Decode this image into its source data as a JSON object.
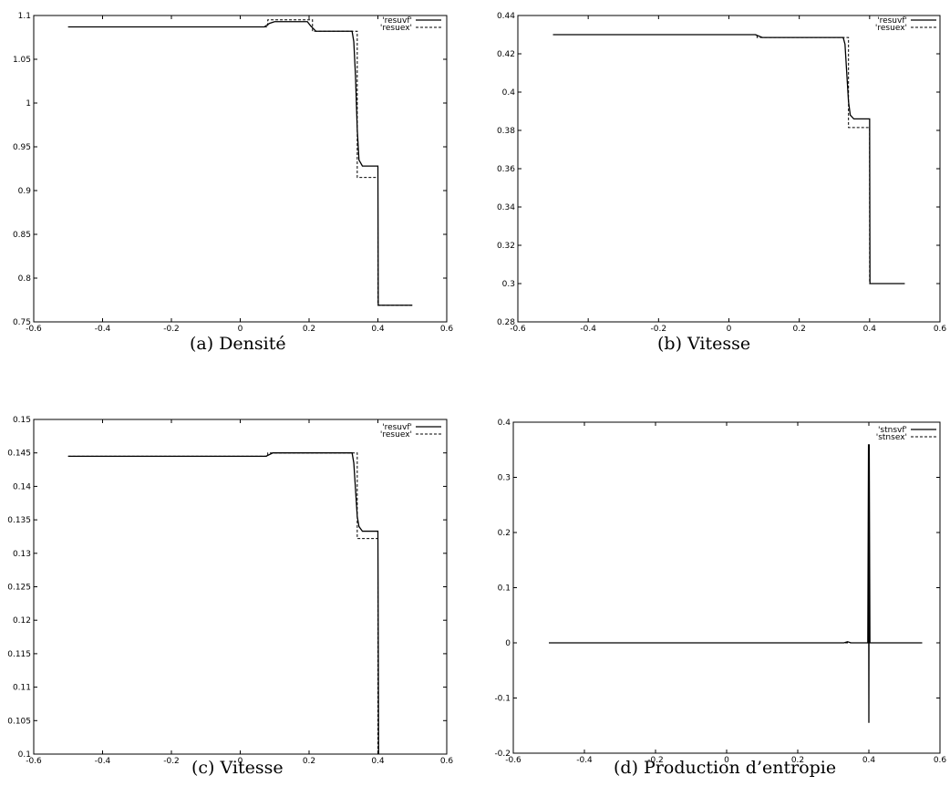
{
  "chart_data": [
    {
      "type": "line",
      "caption": "(a) Densité",
      "xlim": [
        -0.6,
        0.6
      ],
      "ylim": [
        0.75,
        1.1
      ],
      "xticks": [
        "-0.6",
        "-0.4",
        "-0.2",
        "0",
        "0.2",
        "0.4",
        "0.6"
      ],
      "yticks": [
        "0.75",
        "0.8",
        "0.85",
        "0.9",
        "0.95",
        "1",
        "1.05",
        "1.1"
      ],
      "legend_position": "top-right",
      "series": [
        {
          "name": "'resuvf'",
          "style": "solid",
          "x": [
            -0.5,
            0.07,
            0.085,
            0.1,
            0.195,
            0.205,
            0.22,
            0.325,
            0.33,
            0.335,
            0.34,
            0.345,
            0.355,
            0.4,
            0.401,
            0.5
          ],
          "y": [
            1.087,
            1.087,
            1.091,
            1.093,
            1.093,
            1.088,
            1.082,
            1.082,
            1.07,
            1.03,
            0.97,
            0.935,
            0.928,
            0.928,
            0.769,
            0.769
          ]
        },
        {
          "name": "'resuex'",
          "style": "dashed",
          "x": [
            -0.5,
            0.08,
            0.08,
            0.21,
            0.21,
            0.34,
            0.34,
            0.4,
            0.4,
            0.5
          ],
          "y": [
            1.087,
            1.087,
            1.095,
            1.095,
            1.082,
            1.082,
            0.915,
            0.915,
            0.769,
            0.769
          ]
        }
      ]
    },
    {
      "type": "line",
      "caption": "(b) Vitesse",
      "xlim": [
        -0.6,
        0.6
      ],
      "ylim": [
        0.28,
        0.44
      ],
      "xticks": [
        "-0.6",
        "-0.4",
        "-0.2",
        "0",
        "0.2",
        "0.4",
        "0.6"
      ],
      "yticks": [
        "0.28",
        "0.3",
        "0.32",
        "0.34",
        "0.36",
        "0.38",
        "0.4",
        "0.42",
        "0.44"
      ],
      "legend_position": "top-right",
      "series": [
        {
          "name": "'resuvf'",
          "style": "solid",
          "x": [
            -0.5,
            0.075,
            0.095,
            0.325,
            0.33,
            0.335,
            0.34,
            0.345,
            0.355,
            0.4,
            0.401,
            0.5
          ],
          "y": [
            0.43,
            0.43,
            0.4285,
            0.4285,
            0.425,
            0.41,
            0.395,
            0.388,
            0.386,
            0.386,
            0.3,
            0.3
          ]
        },
        {
          "name": "'resuex'",
          "style": "dashed",
          "x": [
            -0.5,
            0.08,
            0.08,
            0.34,
            0.34,
            0.4,
            0.4,
            0.5
          ],
          "y": [
            0.43,
            0.43,
            0.4285,
            0.4285,
            0.3815,
            0.3815,
            0.3,
            0.3
          ]
        }
      ]
    },
    {
      "type": "line",
      "caption": "(c) Vitesse",
      "xlim": [
        -0.6,
        0.6
      ],
      "ylim": [
        0.1,
        0.15
      ],
      "xticks": [
        "-0.6",
        "-0.4",
        "-0.2",
        "0",
        "0.2",
        "0.4",
        "0.6"
      ],
      "yticks": [
        "0.1",
        "0.105",
        "0.11",
        "0.115",
        "0.12",
        "0.125",
        "0.13",
        "0.135",
        "0.14",
        "0.145",
        "0.15"
      ],
      "legend_position": "top-right",
      "series": [
        {
          "name": "'resuvf'",
          "style": "solid",
          "x": [
            -0.5,
            0.075,
            0.095,
            0.325,
            0.33,
            0.335,
            0.34,
            0.345,
            0.355,
            0.4,
            0.402
          ],
          "y": [
            0.1445,
            0.1445,
            0.145,
            0.145,
            0.1435,
            0.1395,
            0.1355,
            0.134,
            0.1333,
            0.1333,
            0.1
          ]
        },
        {
          "name": "'resuex'",
          "style": "dashed",
          "x": [
            -0.5,
            0.08,
            0.08,
            0.34,
            0.34,
            0.4,
            0.4
          ],
          "y": [
            0.1445,
            0.1445,
            0.145,
            0.145,
            0.1322,
            0.1322,
            0.1
          ]
        }
      ]
    },
    {
      "type": "line",
      "caption": "(d) Production d’entropie",
      "xlim": [
        -0.6,
        0.6
      ],
      "ylim": [
        -0.2,
        0.4
      ],
      "xticks": [
        "-0.6",
        "-0.4",
        "-0.2",
        "0",
        "0.2",
        "0.4",
        "0.6"
      ],
      "yticks": [
        "-0.2",
        "-0.1",
        "0",
        "0.1",
        "0.2",
        "0.3",
        "0.4"
      ],
      "legend_position": "top-right",
      "series": [
        {
          "name": "'stnsvf'",
          "style": "solid",
          "x": [
            -0.5,
            0.33,
            0.34,
            0.35,
            0.397,
            0.399,
            0.4,
            0.401,
            0.403,
            0.55
          ],
          "y": [
            0,
            0,
            0.002,
            0,
            0,
            0.36,
            -0.145,
            0.36,
            0,
            0
          ]
        },
        {
          "name": "'stnsex'",
          "style": "dashed",
          "x": [
            -0.5,
            0.5
          ],
          "y": [
            0,
            0
          ]
        }
      ]
    }
  ]
}
